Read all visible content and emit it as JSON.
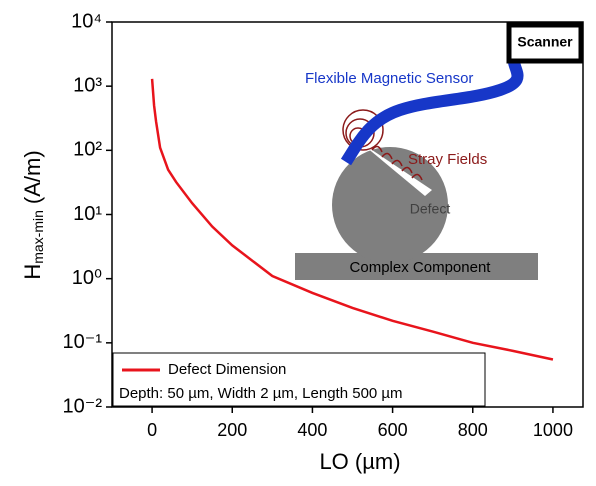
{
  "chart_data": {
    "type": "line",
    "xlabel": "LO (µm)",
    "ylabel": {
      "main": "H",
      "sub": "max-min",
      "unit": "(A/m)"
    },
    "x": [
      0,
      5,
      10,
      20,
      40,
      60,
      100,
      150,
      200,
      300,
      400,
      500,
      600,
      700,
      800,
      900,
      1000
    ],
    "series": [
      {
        "name": "Defect Dimension",
        "color": "#e8141c",
        "values": [
          1300,
          500,
          280,
          110,
          50,
          32,
          15,
          6.5,
          3.3,
          1.1,
          0.6,
          0.35,
          0.22,
          0.15,
          0.1,
          0.075,
          0.055
        ]
      }
    ],
    "legend_note": "Depth: 50 µm, Width 2 µm, Length 500 µm",
    "xlim": [
      -100,
      1075
    ],
    "xticks": [
      0,
      200,
      400,
      600,
      800,
      1000
    ],
    "ylim": [
      0.01,
      10000
    ],
    "log_y": true,
    "yticks": [
      {
        "value": 0.01,
        "label": "10⁻²"
      },
      {
        "value": 0.1,
        "label": "10⁻¹"
      },
      {
        "value": 1,
        "label": "10⁰"
      },
      {
        "value": 10,
        "label": "10¹"
      },
      {
        "value": 100,
        "label": "10²"
      },
      {
        "value": 1000,
        "label": "10³"
      },
      {
        "value": 10000,
        "label": "10⁴"
      }
    ],
    "legend_position": "lower left",
    "inset_labels": {
      "scanner": "Scanner",
      "sensor": "Flexible Magnetic Sensor",
      "stray": "Stray Fields",
      "defect": "Defect",
      "component": "Complex Component"
    }
  }
}
